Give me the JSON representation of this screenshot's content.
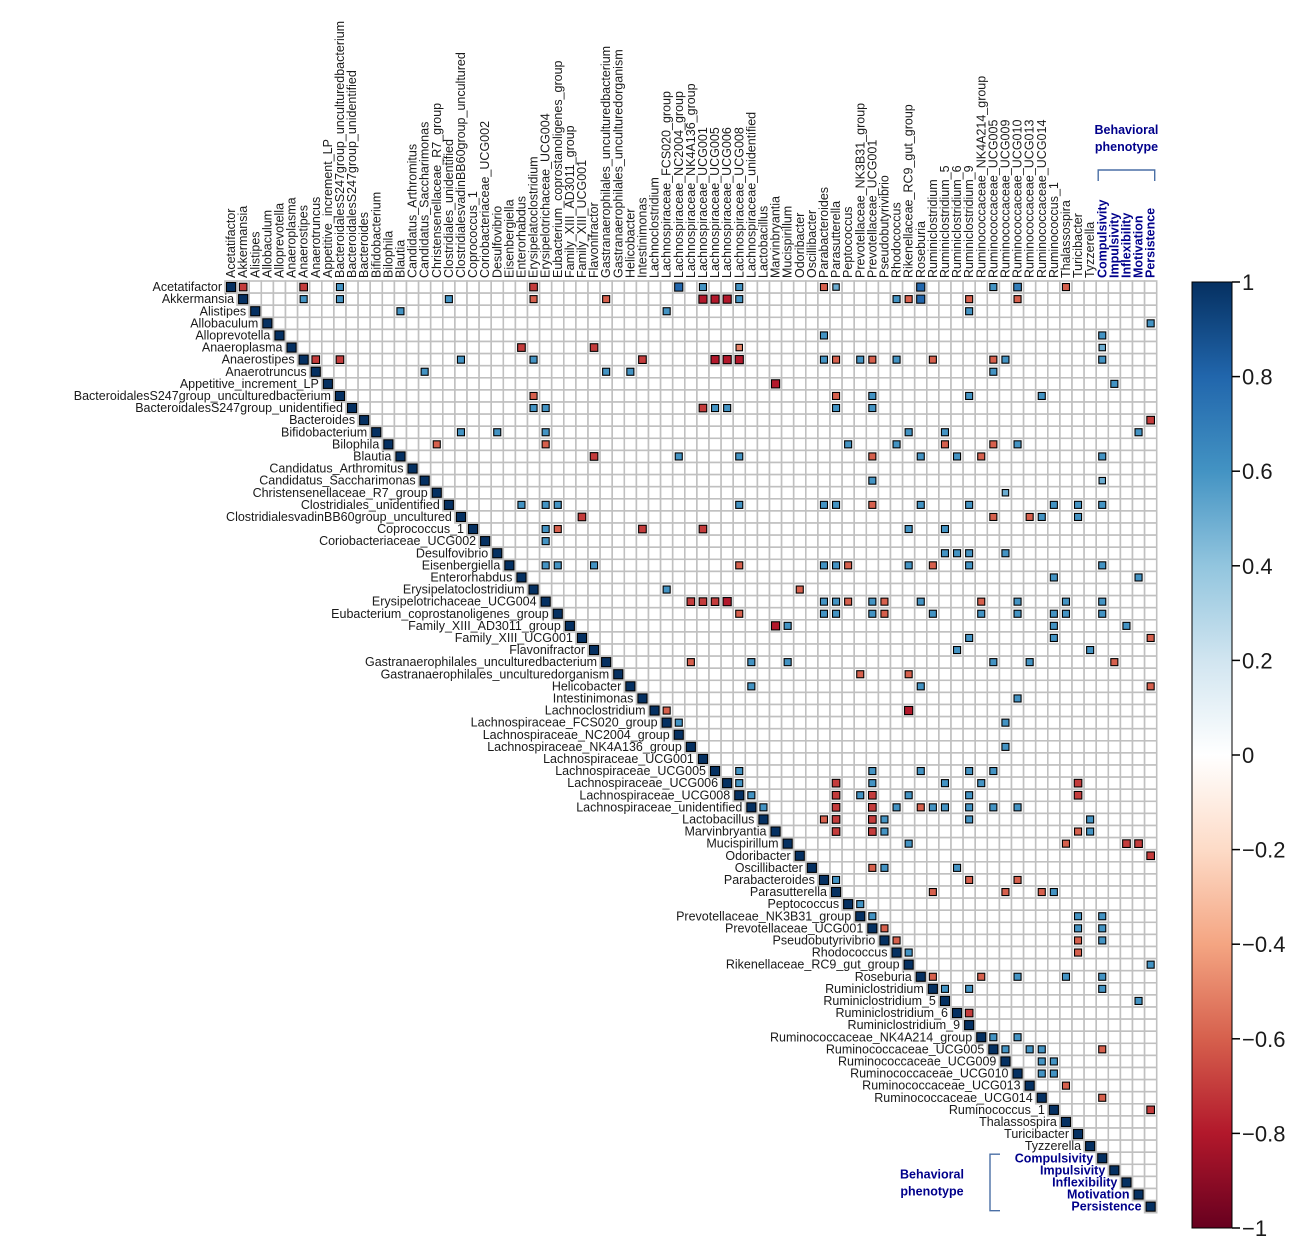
{
  "chart_data": {
    "type": "heatmap",
    "variables": [
      "Acetatifactor",
      "Akkermansia",
      "Alistipes",
      "Allobaculum",
      "Alloprevotella",
      "Anaeroplasma",
      "Anaerostipes",
      "Anaerotruncus",
      "Appetitive_increment_LP",
      "BacteroidalesS247group_unculturedbacterium",
      "BacteroidalesS247group_unidentified",
      "Bacteroides",
      "Bifidobacterium",
      "Bilophila",
      "Blautia",
      "Candidatus_Arthromitus",
      "Candidatus_Saccharimonas",
      "Christensenellaceae_R7_group",
      "Clostridiales_unidentified",
      "ClostridialesvadinBB60group_uncultured",
      "Coprococcus_1",
      "Coriobacteriaceae_UCG002",
      "Desulfovibrio",
      "Eisenbergiella",
      "Enterorhabdus",
      "Erysipelatoclostridium",
      "Erysipelotrichaceae_UCG004",
      "Eubacterium_coprostanoligenes_group",
      "Family_XIII_AD3011_group",
      "Family_XIII_UCG001",
      "Flavonifractor",
      "Gastranaerophilales_unculturedbacterium",
      "Gastranaerophilales_unculturedorganism",
      "Helicobacter",
      "Intestinimonas",
      "Lachnoclostridium",
      "Lachnospiraceae_FCS020_group",
      "Lachnospiraceae_NC2004_group",
      "Lachnospiraceae_NK4A136_group",
      "Lachnospiraceae_UCG001",
      "Lachnospiraceae_UCG005",
      "Lachnospiraceae_UCG006",
      "Lachnospiraceae_UCG008",
      "Lachnospiraceae_unidentified",
      "Lactobacillus",
      "Marvinbryantia",
      "Mucispirillum",
      "Odoribacter",
      "Oscillibacter",
      "Parabacteroides",
      "Parasutterella",
      "Peptococcus",
      "Prevotellaceae_NK3B31_group",
      "Prevotellaceae_UCG001",
      "Pseudobutyrivibrio",
      "Rhodococcus",
      "Rikenellaceae_RC9_gut_group",
      "Roseburia",
      "Ruminiclostridium",
      "Ruminiclostridium_5",
      "Ruminiclostridium_6",
      "Ruminiclostridium_9",
      "Ruminococcaceae_NK4A214_group",
      "Ruminococcaceae_UCG005",
      "Ruminococcaceae_UCG009",
      "Ruminococcaceae_UCG010",
      "Ruminococcaceae_UCG013",
      "Ruminococcaceae_UCG014",
      "Ruminococcus_1",
      "Thalassospira",
      "Turicibacter",
      "Tyzzerella",
      "Compulsivity",
      "Impulsivity",
      "Inflexibility",
      "Motivation",
      "Persistence"
    ],
    "behavioral_variables": [
      "Compulsivity",
      "Impulsivity",
      "Inflexibility",
      "Motivation",
      "Persistence"
    ],
    "behavioral_group_label_top": [
      "Behavioral",
      "phenotype"
    ],
    "behavioral_group_label_bottom": [
      "Behavioral",
      "phenotype"
    ],
    "correlations": [
      [
        0,
        1,
        -0.7
      ],
      [
        0,
        6,
        -0.7
      ],
      [
        0,
        9,
        0.6
      ],
      [
        0,
        25,
        -0.7
      ],
      [
        0,
        37,
        0.8
      ],
      [
        0,
        39,
        0.6
      ],
      [
        0,
        42,
        0.6
      ],
      [
        0,
        49,
        -0.6
      ],
      [
        0,
        50,
        0.5
      ],
      [
        0,
        57,
        0.8
      ],
      [
        0,
        63,
        0.6
      ],
      [
        0,
        65,
        0.7
      ],
      [
        0,
        69,
        -0.6
      ],
      [
        1,
        6,
        0.6
      ],
      [
        1,
        9,
        0.6
      ],
      [
        1,
        18,
        0.6
      ],
      [
        1,
        25,
        -0.6
      ],
      [
        1,
        31,
        -0.6
      ],
      [
        1,
        39,
        -0.8
      ],
      [
        1,
        40,
        -0.8
      ],
      [
        1,
        41,
        -0.8
      ],
      [
        1,
        42,
        0.6
      ],
      [
        1,
        55,
        0.6
      ],
      [
        1,
        56,
        -0.6
      ],
      [
        1,
        57,
        0.8
      ],
      [
        1,
        61,
        -0.6
      ],
      [
        1,
        65,
        -0.6
      ],
      [
        2,
        14,
        0.6
      ],
      [
        2,
        36,
        0.6
      ],
      [
        2,
        61,
        0.6
      ],
      [
        3,
        76,
        0.6
      ],
      [
        4,
        49,
        0.6
      ],
      [
        4,
        72,
        0.6
      ],
      [
        5,
        24,
        -0.7
      ],
      [
        5,
        30,
        -0.7
      ],
      [
        5,
        42,
        -0.5
      ],
      [
        5,
        72,
        0.5
      ],
      [
        6,
        7,
        -0.7
      ],
      [
        6,
        9,
        -0.7
      ],
      [
        6,
        19,
        0.6
      ],
      [
        6,
        25,
        0.6
      ],
      [
        6,
        34,
        -0.7
      ],
      [
        6,
        40,
        -0.8
      ],
      [
        6,
        41,
        -0.8
      ],
      [
        6,
        42,
        -0.8
      ],
      [
        6,
        49,
        0.6
      ],
      [
        6,
        50,
        -0.6
      ],
      [
        6,
        52,
        0.6
      ],
      [
        6,
        53,
        -0.6
      ],
      [
        6,
        55,
        0.6
      ],
      [
        6,
        58,
        -0.6
      ],
      [
        6,
        63,
        -0.6
      ],
      [
        6,
        64,
        0.6
      ],
      [
        6,
        72,
        0.6
      ],
      [
        7,
        16,
        0.6
      ],
      [
        7,
        31,
        0.6
      ],
      [
        7,
        33,
        0.6
      ],
      [
        7,
        63,
        0.6
      ],
      [
        8,
        45,
        -0.8
      ],
      [
        8,
        73,
        0.6
      ],
      [
        9,
        25,
        -0.6
      ],
      [
        9,
        50,
        -0.6
      ],
      [
        9,
        53,
        0.6
      ],
      [
        9,
        61,
        0.6
      ],
      [
        9,
        67,
        0.6
      ],
      [
        10,
        25,
        0.6
      ],
      [
        10,
        26,
        0.6
      ],
      [
        10,
        39,
        -0.7
      ],
      [
        10,
        40,
        0.6
      ],
      [
        10,
        41,
        0.6
      ],
      [
        10,
        50,
        0.6
      ],
      [
        10,
        53,
        0.6
      ],
      [
        11,
        76,
        -0.7
      ],
      [
        12,
        19,
        0.6
      ],
      [
        12,
        22,
        0.6
      ],
      [
        12,
        26,
        0.6
      ],
      [
        12,
        56,
        0.6
      ],
      [
        12,
        59,
        0.6
      ],
      [
        12,
        75,
        0.6
      ],
      [
        13,
        17,
        -0.6
      ],
      [
        13,
        26,
        -0.6
      ],
      [
        13,
        51,
        0.6
      ],
      [
        13,
        55,
        0.6
      ],
      [
        13,
        59,
        -0.6
      ],
      [
        13,
        63,
        -0.6
      ],
      [
        13,
        65,
        0.6
      ],
      [
        14,
        30,
        -0.7
      ],
      [
        14,
        37,
        0.6
      ],
      [
        14,
        42,
        0.6
      ],
      [
        14,
        53,
        -0.6
      ],
      [
        14,
        57,
        0.6
      ],
      [
        14,
        60,
        0.6
      ],
      [
        14,
        62,
        -0.6
      ],
      [
        14,
        72,
        0.6
      ],
      [
        16,
        53,
        0.6
      ],
      [
        16,
        72,
        0.5
      ],
      [
        17,
        64,
        0.5
      ],
      [
        18,
        24,
        0.6
      ],
      [
        18,
        26,
        0.6
      ],
      [
        18,
        27,
        0.6
      ],
      [
        18,
        42,
        0.6
      ],
      [
        18,
        49,
        0.6
      ],
      [
        18,
        50,
        0.6
      ],
      [
        18,
        53,
        -0.6
      ],
      [
        18,
        57,
        0.6
      ],
      [
        18,
        61,
        0.6
      ],
      [
        18,
        68,
        0.6
      ],
      [
        18,
        70,
        0.6
      ],
      [
        18,
        72,
        0.6
      ],
      [
        19,
        29,
        -0.7
      ],
      [
        19,
        63,
        -0.6
      ],
      [
        19,
        66,
        -0.6
      ],
      [
        19,
        67,
        0.6
      ],
      [
        19,
        70,
        0.6
      ],
      [
        20,
        26,
        0.6
      ],
      [
        20,
        27,
        -0.6
      ],
      [
        20,
        34,
        -0.7
      ],
      [
        20,
        39,
        -0.7
      ],
      [
        20,
        56,
        0.6
      ],
      [
        20,
        59,
        0.6
      ],
      [
        21,
        26,
        0.6
      ],
      [
        22,
        59,
        0.6
      ],
      [
        22,
        60,
        0.6
      ],
      [
        22,
        61,
        0.6
      ],
      [
        22,
        64,
        0.6
      ],
      [
        23,
        26,
        0.6
      ],
      [
        23,
        27,
        0.6
      ],
      [
        23,
        30,
        0.6
      ],
      [
        23,
        42,
        -0.6
      ],
      [
        23,
        49,
        0.6
      ],
      [
        23,
        50,
        0.6
      ],
      [
        23,
        51,
        -0.6
      ],
      [
        23,
        56,
        0.6
      ],
      [
        23,
        58,
        -0.6
      ],
      [
        23,
        61,
        0.6
      ],
      [
        23,
        72,
        0.6
      ],
      [
        24,
        68,
        0.6
      ],
      [
        24,
        75,
        0.6
      ],
      [
        25,
        36,
        0.6
      ],
      [
        25,
        47,
        -0.6
      ],
      [
        26,
        38,
        -0.7
      ],
      [
        26,
        39,
        -0.7
      ],
      [
        26,
        40,
        -0.7
      ],
      [
        26,
        41,
        -0.8
      ],
      [
        26,
        49,
        0.6
      ],
      [
        26,
        50,
        0.6
      ],
      [
        26,
        51,
        -0.6
      ],
      [
        26,
        53,
        0.6
      ],
      [
        26,
        54,
        -0.6
      ],
      [
        26,
        57,
        0.6
      ],
      [
        26,
        62,
        -0.6
      ],
      [
        26,
        65,
        0.6
      ],
      [
        26,
        69,
        0.6
      ],
      [
        26,
        72,
        0.6
      ],
      [
        27,
        42,
        -0.6
      ],
      [
        27,
        49,
        0.6
      ],
      [
        27,
        50,
        0.6
      ],
      [
        27,
        53,
        0.6
      ],
      [
        27,
        54,
        -0.6
      ],
      [
        27,
        58,
        0.6
      ],
      [
        27,
        62,
        0.6
      ],
      [
        27,
        65,
        0.6
      ],
      [
        27,
        68,
        0.6
      ],
      [
        27,
        69,
        0.6
      ],
      [
        27,
        72,
        0.6
      ],
      [
        28,
        45,
        -0.8
      ],
      [
        28,
        46,
        0.6
      ],
      [
        28,
        68,
        0.6
      ],
      [
        28,
        74,
        0.6
      ],
      [
        29,
        61,
        0.6
      ],
      [
        29,
        68,
        0.6
      ],
      [
        29,
        76,
        -0.6
      ],
      [
        30,
        60,
        0.6
      ],
      [
        30,
        71,
        0.6
      ],
      [
        31,
        38,
        -0.6
      ],
      [
        31,
        43,
        0.6
      ],
      [
        31,
        46,
        0.6
      ],
      [
        31,
        63,
        0.6
      ],
      [
        31,
        66,
        0.6
      ],
      [
        31,
        73,
        -0.6
      ],
      [
        32,
        52,
        -0.6
      ],
      [
        32,
        56,
        -0.6
      ],
      [
        33,
        43,
        0.6
      ],
      [
        33,
        57,
        0.6
      ],
      [
        33,
        76,
        -0.6
      ],
      [
        34,
        65,
        0.6
      ],
      [
        35,
        36,
        -0.6
      ],
      [
        35,
        56,
        -0.8
      ],
      [
        36,
        37,
        0.6
      ],
      [
        36,
        64,
        0.6
      ],
      [
        38,
        64,
        0.6
      ],
      [
        40,
        42,
        0.6
      ],
      [
        40,
        53,
        0.6
      ],
      [
        40,
        57,
        0.6
      ],
      [
        40,
        61,
        0.6
      ],
      [
        40,
        63,
        0.6
      ],
      [
        41,
        42,
        0.6
      ],
      [
        41,
        50,
        -0.7
      ],
      [
        41,
        53,
        0.6
      ],
      [
        41,
        59,
        0.6
      ],
      [
        41,
        62,
        0.6
      ],
      [
        41,
        70,
        -0.7
      ],
      [
        42,
        43,
        0.6
      ],
      [
        42,
        50,
        -0.7
      ],
      [
        42,
        52,
        0.6
      ],
      [
        42,
        53,
        -0.7
      ],
      [
        42,
        56,
        0.6
      ],
      [
        42,
        61,
        0.6
      ],
      [
        42,
        70,
        -0.7
      ],
      [
        43,
        44,
        0.6
      ],
      [
        43,
        50,
        -0.7
      ],
      [
        43,
        53,
        -0.7
      ],
      [
        43,
        55,
        0.6
      ],
      [
        43,
        57,
        -0.6
      ],
      [
        43,
        58,
        0.6
      ],
      [
        43,
        59,
        0.6
      ],
      [
        43,
        61,
        0.6
      ],
      [
        43,
        63,
        0.6
      ],
      [
        43,
        65,
        0.6
      ],
      [
        44,
        49,
        -0.6
      ],
      [
        44,
        50,
        -0.7
      ],
      [
        44,
        53,
        -0.7
      ],
      [
        44,
        54,
        0.6
      ],
      [
        44,
        61,
        0.6
      ],
      [
        44,
        71,
        0.6
      ],
      [
        45,
        50,
        -0.7
      ],
      [
        45,
        53,
        -0.7
      ],
      [
        45,
        54,
        0.6
      ],
      [
        45,
        70,
        -0.6
      ],
      [
        45,
        71,
        0.6
      ],
      [
        46,
        56,
        0.6
      ],
      [
        46,
        69,
        -0.6
      ],
      [
        46,
        74,
        -0.7
      ],
      [
        46,
        75,
        -0.7
      ],
      [
        47,
        76,
        -0.7
      ],
      [
        48,
        53,
        -0.6
      ],
      [
        48,
        54,
        0.6
      ],
      [
        48,
        60,
        0.6
      ],
      [
        49,
        50,
        0.6
      ],
      [
        49,
        61,
        -0.6
      ],
      [
        49,
        65,
        -0.6
      ],
      [
        50,
        58,
        -0.6
      ],
      [
        50,
        64,
        -0.6
      ],
      [
        50,
        67,
        -0.6
      ],
      [
        50,
        68,
        0.6
      ],
      [
        51,
        52,
        0.6
      ],
      [
        52,
        53,
        0.6
      ],
      [
        52,
        70,
        0.6
      ],
      [
        52,
        72,
        0.6
      ],
      [
        53,
        54,
        -0.6
      ],
      [
        53,
        70,
        0.6
      ],
      [
        53,
        72,
        0.6
      ],
      [
        54,
        55,
        -0.6
      ],
      [
        54,
        70,
        -0.6
      ],
      [
        54,
        72,
        0.6
      ],
      [
        55,
        56,
        0.6
      ],
      [
        55,
        70,
        -0.6
      ],
      [
        56,
        76,
        0.6
      ],
      [
        57,
        58,
        -0.6
      ],
      [
        57,
        62,
        -0.6
      ],
      [
        57,
        65,
        0.6
      ],
      [
        57,
        69,
        0.6
      ],
      [
        57,
        72,
        0.6
      ],
      [
        58,
        59,
        0.6
      ],
      [
        58,
        61,
        0.6
      ],
      [
        58,
        72,
        0.6
      ],
      [
        59,
        75,
        0.6
      ],
      [
        60,
        61,
        -0.7
      ],
      [
        62,
        63,
        0.6
      ],
      [
        62,
        65,
        0.6
      ],
      [
        63,
        64,
        0.6
      ],
      [
        63,
        66,
        0.6
      ],
      [
        63,
        67,
        0.6
      ],
      [
        63,
        72,
        -0.6
      ],
      [
        64,
        67,
        0.6
      ],
      [
        64,
        68,
        0.6
      ],
      [
        65,
        67,
        0.6
      ],
      [
        65,
        68,
        0.6
      ],
      [
        66,
        69,
        -0.6
      ],
      [
        67,
        72,
        -0.6
      ],
      [
        68,
        76,
        -0.7
      ]
    ],
    "colorbar": {
      "ticks": [
        1,
        0.8,
        0.6,
        0.4,
        0.2,
        0,
        -0.2,
        -0.4,
        -0.6,
        -0.8,
        -1
      ],
      "labels": [
        "1",
        "0.8",
        "0.6",
        "0.4",
        "0.2",
        "0",
        "−0.2",
        "−0.4",
        "−0.6",
        "−0.8",
        "−1"
      ],
      "range": [
        -1,
        1
      ],
      "colors_high_to_low": [
        "#053061",
        "#2166ac",
        "#4393c3",
        "#92c5de",
        "#d1e5f0",
        "#ffffff",
        "#fddbc7",
        "#f4a582",
        "#d6604d",
        "#b2182b",
        "#67001f"
      ]
    },
    "grid_color": "#c0c0c0",
    "diagonal_value": 1,
    "legend_position": "right"
  }
}
